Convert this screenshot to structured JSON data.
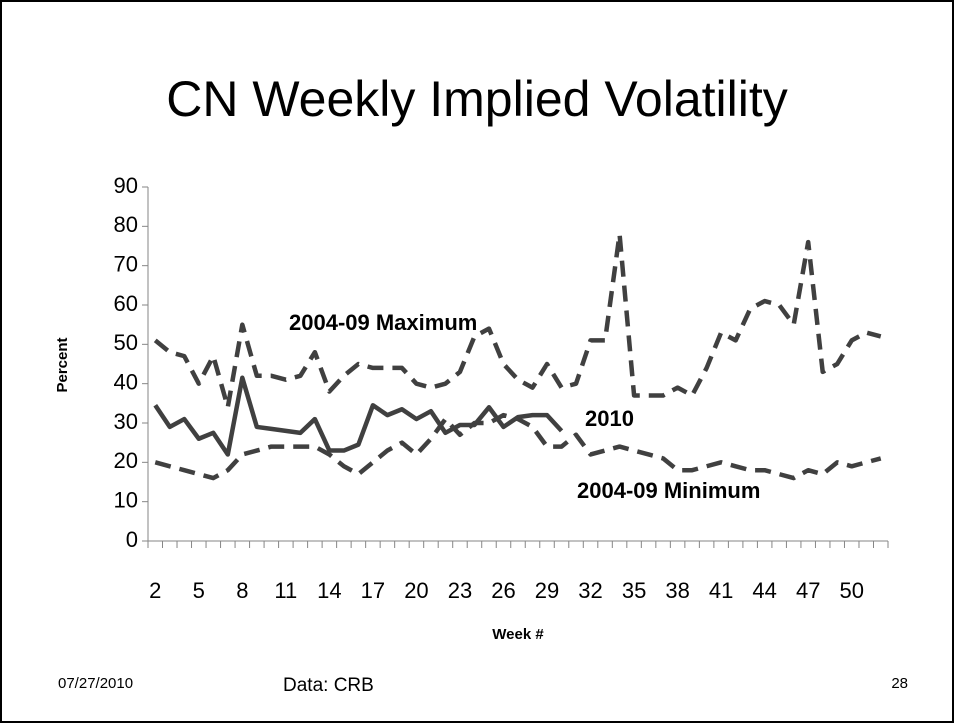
{
  "chart_data": {
    "type": "line",
    "title": "CN Weekly Implied Volatility",
    "x_label": "Week #",
    "y_label": "Percent",
    "categories": [
      2,
      null,
      null,
      5,
      null,
      null,
      8,
      null,
      null,
      11,
      null,
      null,
      14,
      null,
      null,
      17,
      null,
      null,
      20,
      null,
      null,
      23,
      null,
      null,
      26,
      null,
      null,
      29,
      null,
      null,
      32,
      null,
      null,
      35,
      null,
      null,
      38,
      null,
      null,
      41,
      null,
      null,
      44,
      null,
      null,
      47,
      null,
      null,
      50,
      null,
      null
    ],
    "ylim": [
      0,
      90
    ],
    "yticks": [
      0,
      10,
      20,
      30,
      40,
      50,
      60,
      70,
      80,
      90
    ],
    "series": [
      {
        "name": "2004-09 Maximum",
        "color": "#404040",
        "dashed": true,
        "values": [
          51,
          48,
          47,
          40,
          47,
          34,
          55,
          42,
          42,
          41,
          42,
          48,
          38,
          42,
          45,
          44,
          44,
          44,
          40,
          39,
          40,
          43,
          52,
          54,
          45,
          41,
          39,
          45,
          39,
          40,
          51,
          51,
          78,
          37,
          37,
          37,
          39,
          37,
          44,
          53,
          51,
          59,
          61,
          60,
          55,
          76,
          43,
          45,
          51,
          53,
          52
        ]
      },
      {
        "name": "2010",
        "color": "#404040",
        "dashed": false,
        "values": [
          34.5,
          29,
          31,
          26,
          27.5,
          22,
          41.5,
          29,
          28.5,
          28,
          27.5,
          31,
          23,
          23,
          24.5,
          34.5,
          32,
          33.5,
          31,
          33,
          27.5,
          29.5,
          29.5,
          34,
          29,
          31.5,
          32,
          32,
          28,
          null,
          null,
          null,
          null,
          null,
          null,
          null,
          null,
          null,
          null,
          null,
          null,
          null,
          null,
          null,
          null,
          null,
          null,
          null,
          null,
          null,
          null
        ]
      },
      {
        "name": "2004-09 Minimum",
        "color": "#404040",
        "dashed": true,
        "values": [
          20,
          19,
          18,
          17,
          16,
          18,
          22,
          23,
          24,
          24,
          24,
          24,
          22,
          19,
          17,
          20,
          23,
          25,
          22,
          26,
          31,
          27,
          30,
          30,
          32,
          31,
          29,
          24,
          24,
          27,
          22,
          23,
          24,
          23,
          22,
          21,
          18,
          18,
          19,
          20,
          19,
          18,
          18,
          17,
          16,
          18,
          17,
          20,
          19,
          20,
          21
        ]
      }
    ]
  },
  "footer": {
    "date": "07/27/2010",
    "source": "Data: CRB",
    "page": "28"
  }
}
